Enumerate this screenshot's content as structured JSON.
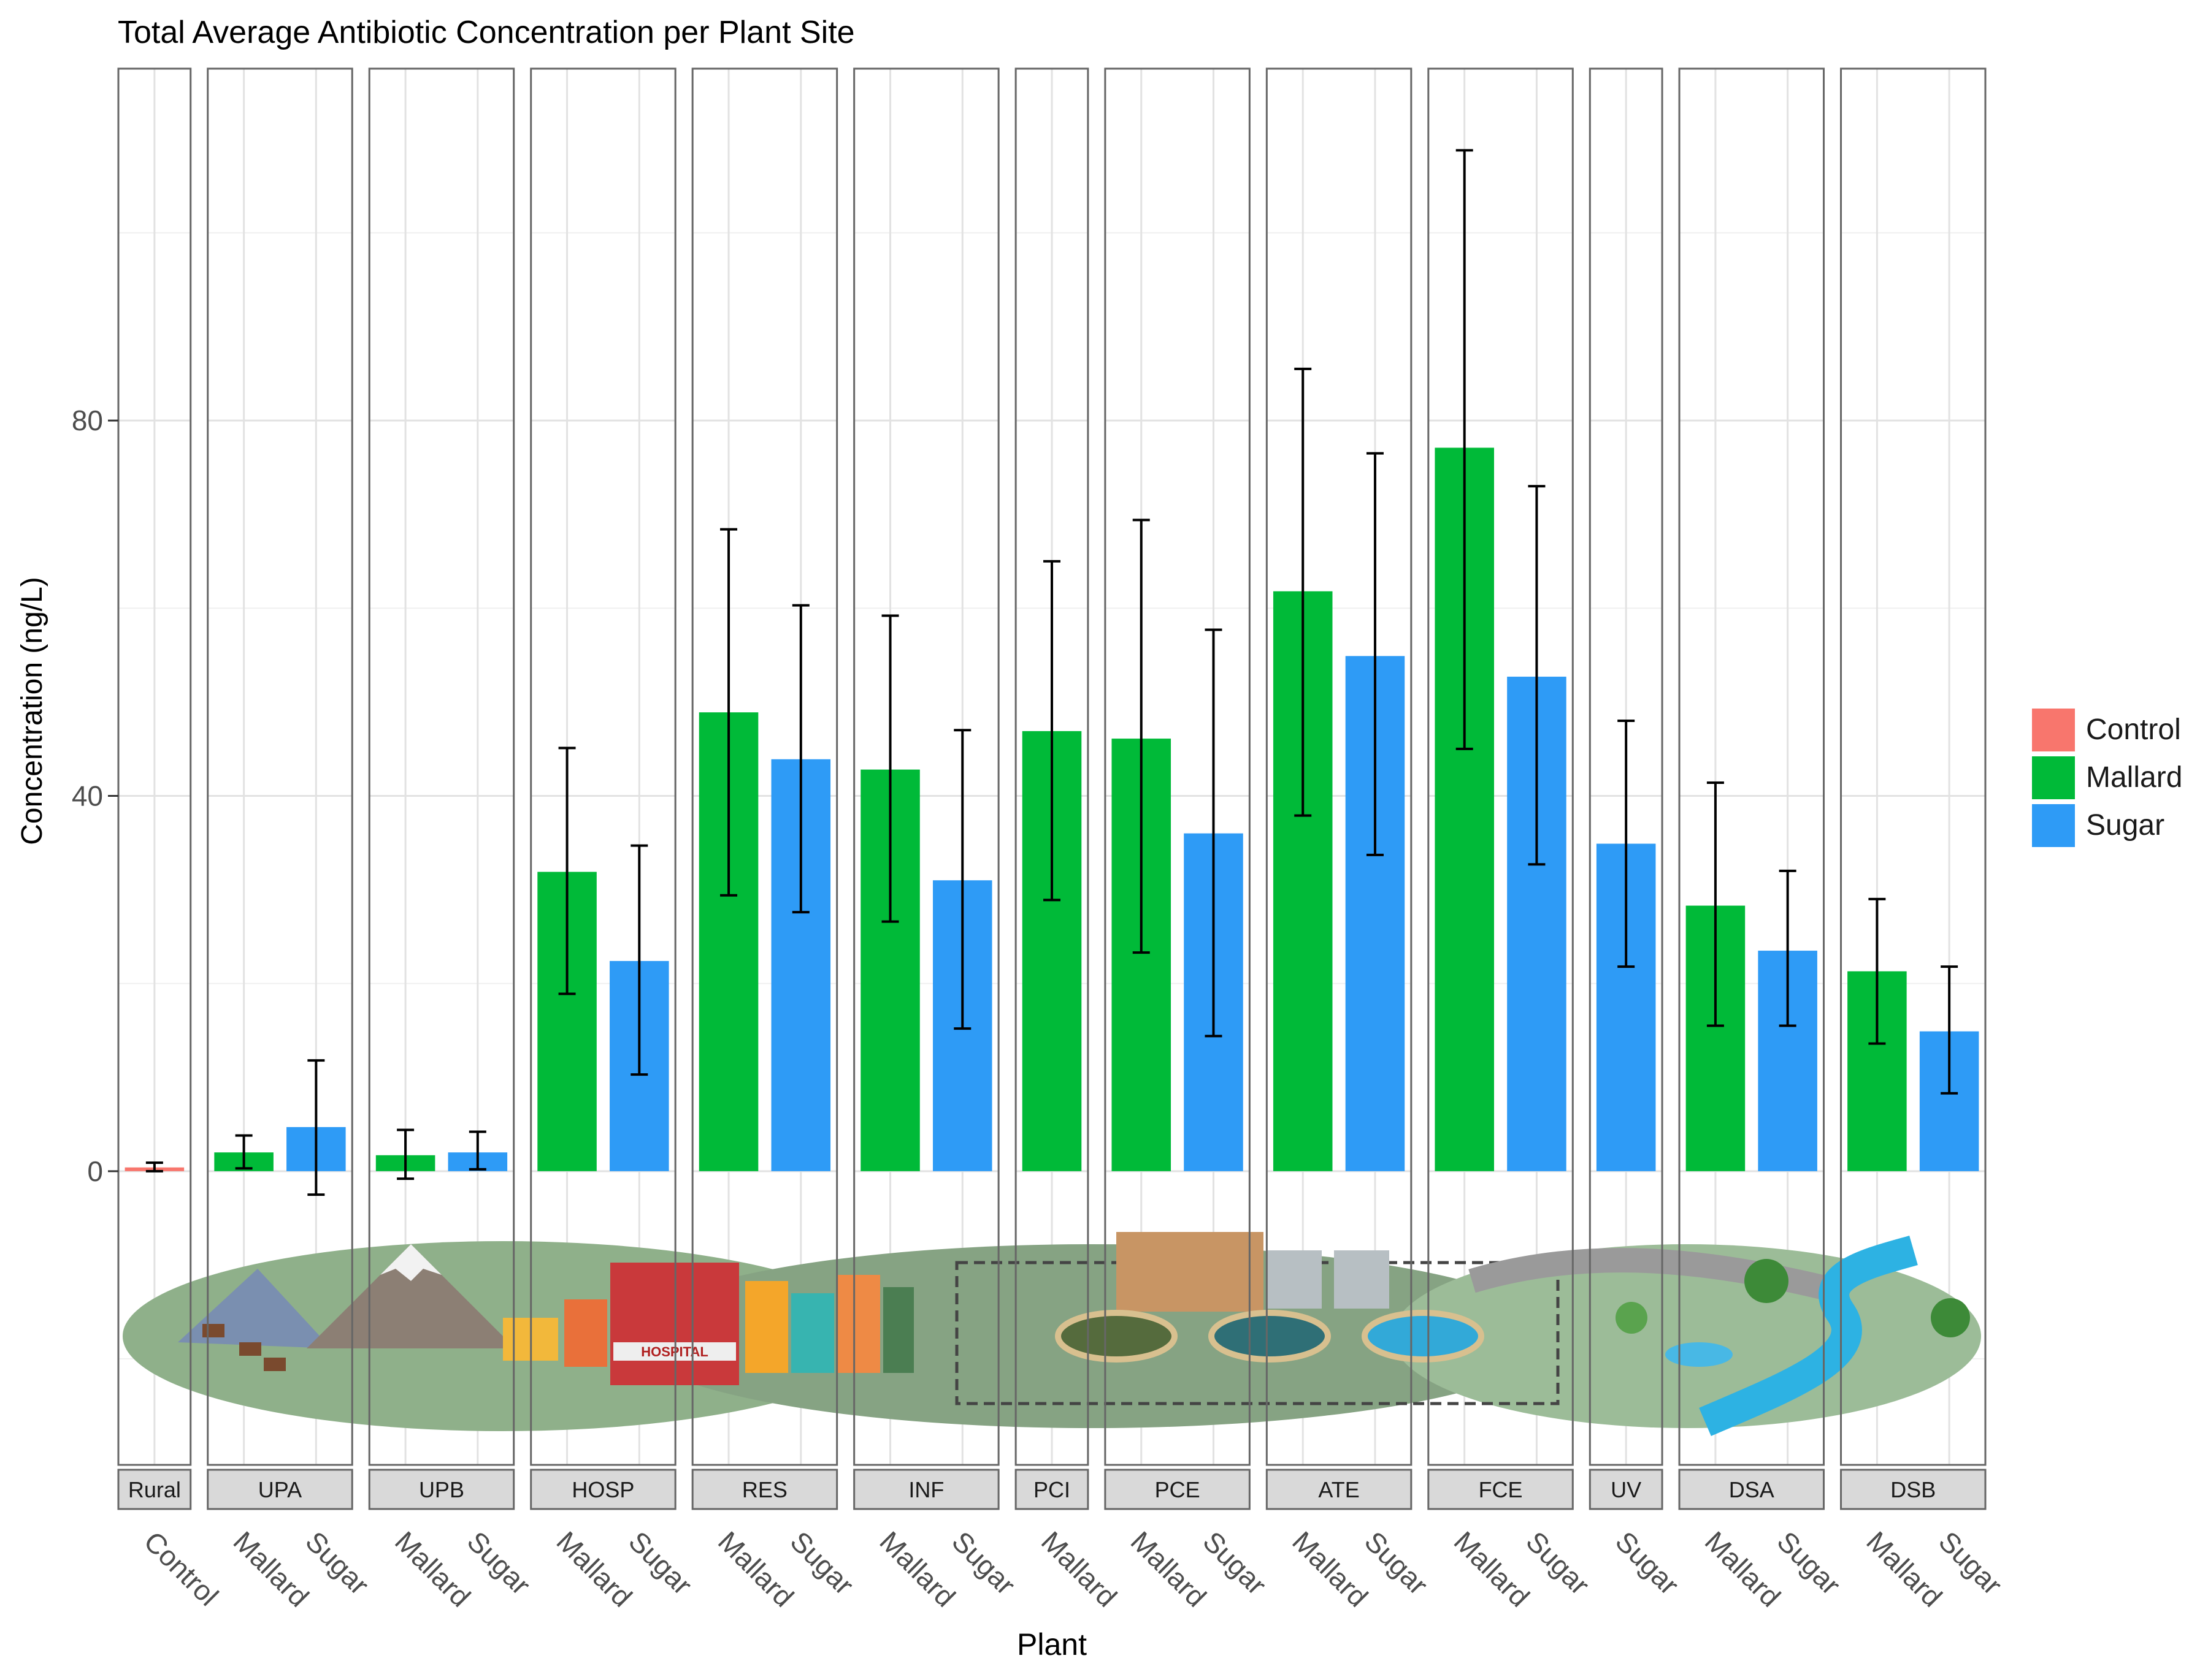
{
  "chart_data": {
    "type": "bar",
    "title": "Total Average Antibiotic Concentration per Plant Site",
    "xlabel": "Plant",
    "ylabel": "Concentration (ng/L)",
    "ylim": [
      -31.3,
      117.5
    ],
    "yticks": [
      0,
      40,
      80
    ],
    "ytick_labels": [
      "0",
      "40",
      "80"
    ],
    "grid": true,
    "legend_position": "right",
    "legend": [
      {
        "name": "Control",
        "color": "#F8766D"
      },
      {
        "name": "Mallard",
        "color": "#00BA38"
      },
      {
        "name": "Sugar",
        "color": "#2E9BF6"
      }
    ],
    "facets": [
      {
        "label": "Rural",
        "bars": [
          {
            "category": "Control",
            "series": "Control",
            "value": 0.4,
            "err_low": 0,
            "err_high": 0.9
          }
        ]
      },
      {
        "label": "UPA",
        "bars": [
          {
            "category": "Mallard",
            "series": "Mallard",
            "value": 2.0,
            "err_low": 0.3,
            "err_high": 3.8
          },
          {
            "category": "Sugar",
            "series": "Sugar",
            "value": 4.7,
            "err_low": -2.5,
            "err_high": 11.8
          }
        ]
      },
      {
        "label": "UPB",
        "bars": [
          {
            "category": "Mallard",
            "series": "Mallard",
            "value": 1.7,
            "err_low": -0.8,
            "err_high": 4.4
          },
          {
            "category": "Sugar",
            "series": "Sugar",
            "value": 2.0,
            "err_low": 0.2,
            "err_high": 4.2
          }
        ]
      },
      {
        "label": "HOSP",
        "bars": [
          {
            "category": "Mallard",
            "series": "Mallard",
            "value": 31.9,
            "err_low": 18.9,
            "err_high": 45.1
          },
          {
            "category": "Sugar",
            "series": "Sugar",
            "value": 22.4,
            "err_low": 10.3,
            "err_high": 34.7
          }
        ]
      },
      {
        "label": "RES",
        "bars": [
          {
            "category": "Mallard",
            "series": "Mallard",
            "value": 48.9,
            "err_low": 29.4,
            "err_high": 68.4
          },
          {
            "category": "Sugar",
            "series": "Sugar",
            "value": 43.9,
            "err_low": 27.6,
            "err_high": 60.3
          }
        ]
      },
      {
        "label": "INF",
        "bars": [
          {
            "category": "Mallard",
            "series": "Mallard",
            "value": 42.8,
            "err_low": 26.6,
            "err_high": 59.2
          },
          {
            "category": "Sugar",
            "series": "Sugar",
            "value": 31.0,
            "err_low": 15.2,
            "err_high": 47.0
          }
        ]
      },
      {
        "label": "PCI",
        "bars": [
          {
            "category": "Mallard",
            "series": "Mallard",
            "value": 46.9,
            "err_low": 28.9,
            "err_high": 65.0
          }
        ]
      },
      {
        "label": "PCE",
        "bars": [
          {
            "category": "Mallard",
            "series": "Mallard",
            "value": 46.1,
            "err_low": 23.3,
            "err_high": 69.4
          },
          {
            "category": "Sugar",
            "series": "Sugar",
            "value": 36.0,
            "err_low": 14.4,
            "err_high": 57.7
          }
        ]
      },
      {
        "label": "ATE",
        "bars": [
          {
            "category": "Mallard",
            "series": "Mallard",
            "value": 61.8,
            "err_low": 37.9,
            "err_high": 85.5
          },
          {
            "category": "Sugar",
            "series": "Sugar",
            "value": 54.9,
            "err_low": 33.7,
            "err_high": 76.5
          }
        ]
      },
      {
        "label": "FCE",
        "bars": [
          {
            "category": "Mallard",
            "series": "Mallard",
            "value": 77.1,
            "err_low": 45.0,
            "err_high": 108.8
          },
          {
            "category": "Sugar",
            "series": "Sugar",
            "value": 52.7,
            "err_low": 32.7,
            "err_high": 73.0
          }
        ]
      },
      {
        "label": "UV",
        "bars": [
          {
            "category": "Sugar",
            "series": "Sugar",
            "value": 34.9,
            "err_low": 21.8,
            "err_high": 48.0
          }
        ]
      },
      {
        "label": "DSA",
        "bars": [
          {
            "category": "Mallard",
            "series": "Mallard",
            "value": 28.3,
            "err_low": 15.5,
            "err_high": 41.4
          },
          {
            "category": "Sugar",
            "series": "Sugar",
            "value": 23.5,
            "err_low": 15.5,
            "err_high": 32.0
          }
        ]
      },
      {
        "label": "DSB",
        "bars": [
          {
            "category": "Mallard",
            "series": "Mallard",
            "value": 21.3,
            "err_low": 13.6,
            "err_high": 29.0
          },
          {
            "category": "Sugar",
            "series": "Sugar",
            "value": 14.9,
            "err_low": 8.3,
            "err_high": 21.8
          }
        ]
      }
    ]
  },
  "illustration": {
    "hospital_sign": "HOSPITAL"
  }
}
